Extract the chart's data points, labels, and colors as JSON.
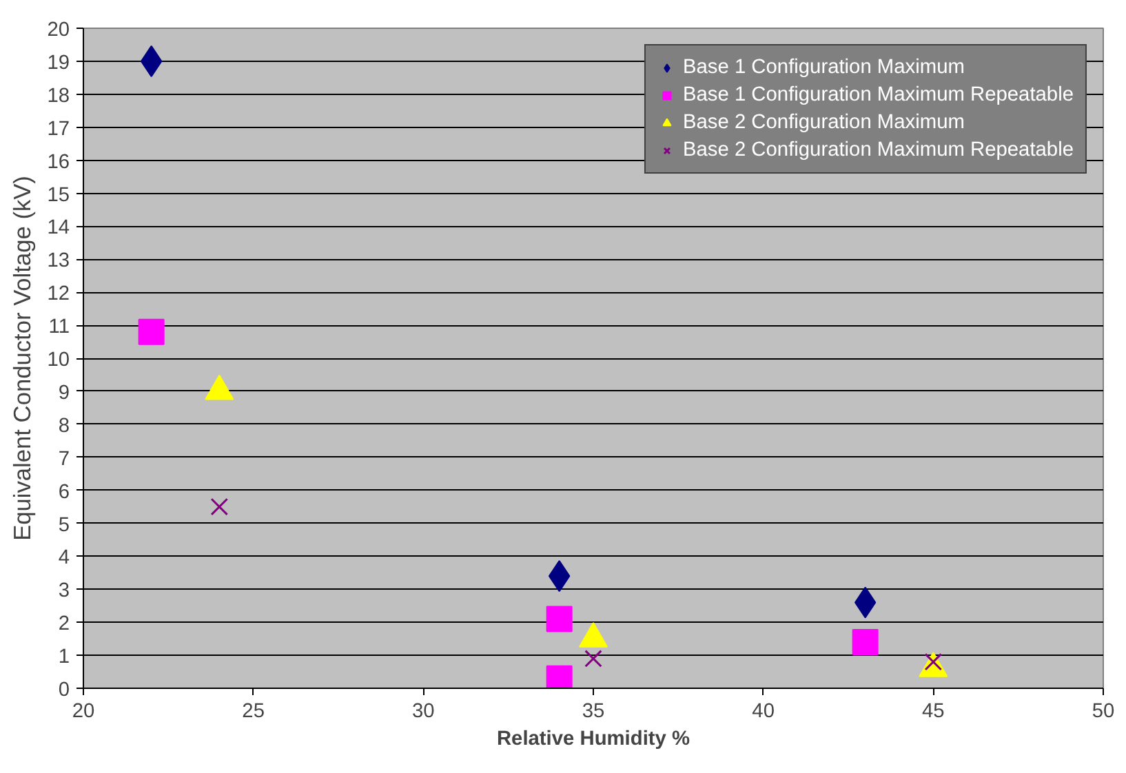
{
  "chart_data": {
    "type": "scatter",
    "xlabel": "Relative Humidity %",
    "ylabel": "Equivalent Conductor Voltage (kV)",
    "xlim": [
      20,
      50
    ],
    "xticks": [
      20,
      25,
      30,
      35,
      40,
      45,
      50
    ],
    "ylim": [
      0,
      20
    ],
    "yticks": [
      0,
      1,
      2,
      3,
      4,
      5,
      6,
      7,
      8,
      9,
      10,
      11,
      12,
      13,
      14,
      15,
      16,
      17,
      18,
      19,
      20
    ],
    "grid": "y",
    "legend": "top right",
    "series": [
      {
        "name": "Base 1 Configuration Maximum",
        "color": "#000080",
        "marker": "diamond",
        "x": [
          22,
          34,
          43
        ],
        "values": [
          19.0,
          3.4,
          2.6
        ]
      },
      {
        "name": "Base 1 Configuration Maximum Repeatable",
        "color": "#ff00ff",
        "marker": "square",
        "x": [
          22,
          34,
          34,
          43
        ],
        "values": [
          10.8,
          2.1,
          0.3,
          1.4
        ]
      },
      {
        "name": "Base 2 Configuration Maximum",
        "color": "#ffff00",
        "marker": "triangle",
        "x": [
          24,
          35,
          45
        ],
        "values": [
          9.0,
          1.5,
          0.6
        ]
      },
      {
        "name": "Base 2 Configuration Maximum Repeatable",
        "color": "#800080",
        "marker": "cross",
        "x": [
          24,
          35,
          45
        ],
        "values": [
          5.5,
          0.9,
          0.8
        ]
      }
    ]
  }
}
